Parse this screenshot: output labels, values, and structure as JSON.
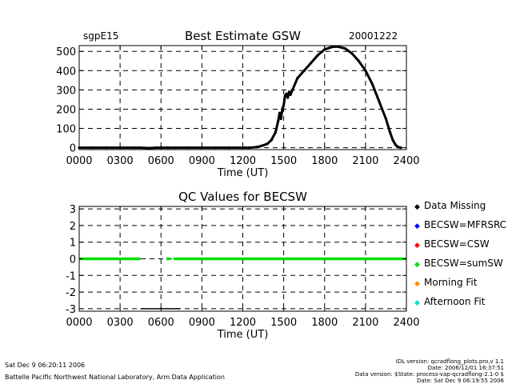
{
  "header": {
    "site": "sgpE15",
    "date": "20001222"
  },
  "chart_data": [
    {
      "type": "scatter",
      "title": "Best Estimate GSW",
      "xlabel": "Time (UT)",
      "ylabel": "",
      "xlim": [
        0,
        2400
      ],
      "ylim": [
        -10,
        530
      ],
      "x_tick_labels": [
        "0000",
        "0300",
        "0600",
        "0900",
        "1200",
        "1500",
        "1800",
        "2100",
        "2400"
      ],
      "y_tick_labels": [
        "0",
        "100",
        "200",
        "300",
        "400",
        "500"
      ],
      "x_ticks": [
        0,
        300,
        600,
        900,
        1200,
        1500,
        1800,
        2100,
        2400
      ],
      "y_ticks": [
        0,
        100,
        200,
        300,
        400,
        500
      ],
      "grid": true,
      "series": [
        {
          "color": "#000000",
          "x": [
            0,
            100,
            200,
            300,
            400,
            450,
            520,
            560,
            600,
            650,
            700,
            800,
            900,
            1000,
            1100,
            1200,
            1250,
            1300,
            1340,
            1380,
            1410,
            1440,
            1460,
            1470,
            1480,
            1490,
            1500,
            1510,
            1520,
            1530,
            1540,
            1550,
            1600,
            1650,
            1700,
            1750,
            1800,
            1850,
            1880,
            1900,
            1950,
            2000,
            2050,
            2100,
            2150,
            2200,
            2250,
            2280,
            2300,
            2320,
            2340,
            2360
          ],
          "y": [
            0,
            0,
            0,
            0,
            0,
            0,
            -2,
            0,
            0,
            0,
            0,
            0,
            0,
            0,
            0,
            0,
            0,
            3,
            10,
            20,
            40,
            80,
            140,
            180,
            150,
            200,
            220,
            270,
            280,
            260,
            290,
            275,
            360,
            400,
            440,
            480,
            510,
            522,
            525,
            524,
            515,
            490,
            450,
            400,
            330,
            240,
            150,
            80,
            40,
            15,
            3,
            0
          ]
        }
      ]
    },
    {
      "type": "scatter",
      "title": "QC Values for BECSW",
      "xlabel": "Time (UT)",
      "ylabel": "",
      "xlim": [
        0,
        2400
      ],
      "ylim": [
        -3.15,
        3.15
      ],
      "x_tick_labels": [
        "0000",
        "0300",
        "0600",
        "0900",
        "1200",
        "1500",
        "1800",
        "2100",
        "2400"
      ],
      "y_tick_labels": [
        "3",
        "2",
        "1",
        "0",
        "-1",
        "-2",
        "-3"
      ],
      "x_ticks": [
        0,
        300,
        600,
        900,
        1200,
        1500,
        1800,
        2100,
        2400
      ],
      "y_ticks": [
        3,
        2,
        1,
        0,
        -1,
        -2,
        -3
      ],
      "grid": true,
      "legend": [
        {
          "label": "Data Missing",
          "color": "#000000"
        },
        {
          "label": "BECSW=MFRSRC",
          "color": "#0000ff"
        },
        {
          "label": "BECSW=CSW",
          "color": "#ff0000"
        },
        {
          "label": "BECSW=sumSW",
          "color": "#00e000"
        },
        {
          "label": "Morning Fit",
          "color": "#ff8c00"
        },
        {
          "label": "Afternoon Fit",
          "color": "#00e0e0"
        }
      ],
      "segments": [
        {
          "color": "#00e000",
          "y": 0,
          "x_start": 0,
          "x_end": 450
        },
        {
          "color": "#00e000",
          "y": 0,
          "x_start": 640,
          "x_end": 670
        },
        {
          "color": "#00e000",
          "y": 0,
          "x_start": 690,
          "x_end": 2400
        },
        {
          "color": "#000000",
          "y": -3,
          "x_start": 450,
          "x_end": 740
        }
      ]
    }
  ],
  "footer": {
    "left_line1": "Sat Dec  9 06:20:11 2006",
    "left_line2": "Battelle Pacific Northwest National Laboratory, Arm Data Application",
    "right_line1": "IDL version: qcradflong_plots.pro,v 1.1",
    "right_line2": "Date: 2006/12/01 16:37:51",
    "right_line3": "Data version: $State: process-vap-qcradflong-2.1-0 $",
    "right_line4": "Date: Sat Dec  9 06:19:55 2006"
  }
}
